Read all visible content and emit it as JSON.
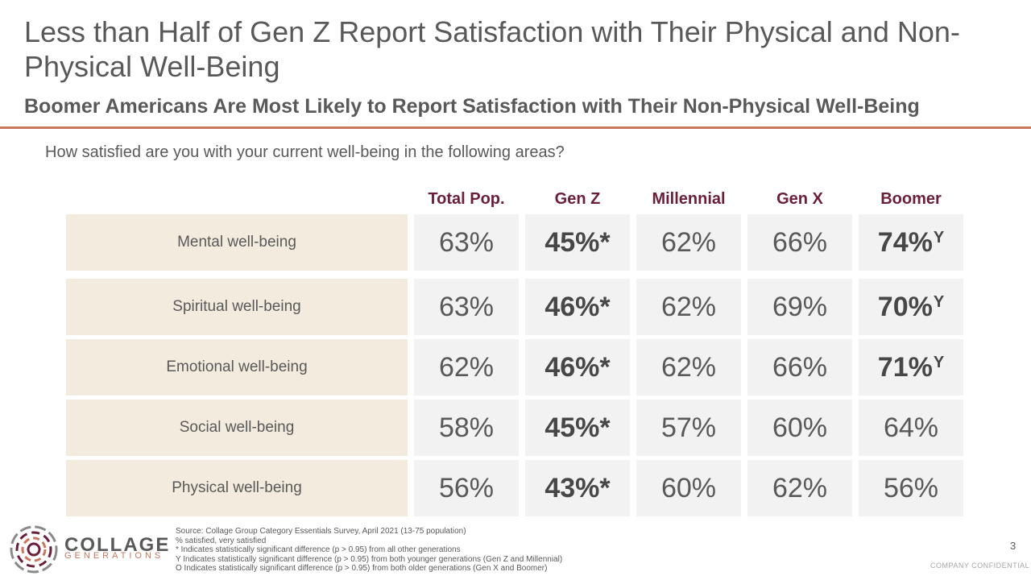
{
  "title": "Less than Half of Gen Z Report Satisfaction with Their Physical and Non-Physical Well-Being",
  "subtitle": "Boomer Americans Are Most Likely to Report Satisfaction with Their Non-Physical Well-Being",
  "question": "How satisfied are you with your current well-being in the following areas?",
  "columns": [
    "Total Pop.",
    "Gen Z",
    "Millennial",
    "Gen X",
    "Boomer"
  ],
  "rows": [
    {
      "label": "Mental well-being",
      "values": [
        "63%",
        "45%*",
        "62%",
        "66%",
        "74%"
      ],
      "boomer_sup": "Y"
    },
    {
      "label": "Spiritual well-being",
      "values": [
        "63%",
        "46%*",
        "62%",
        "69%",
        "70%"
      ],
      "boomer_sup": "Y"
    },
    {
      "label": "Emotional well-being",
      "values": [
        "62%",
        "46%*",
        "62%",
        "66%",
        "71%"
      ],
      "boomer_sup": "Y"
    },
    {
      "label": "Social well-being",
      "values": [
        "58%",
        "45%*",
        "57%",
        "60%",
        "64%"
      ],
      "boomer_sup": ""
    },
    {
      "label": "Physical well-being",
      "values": [
        "56%",
        "43%*",
        "60%",
        "62%",
        "56%"
      ],
      "boomer_sup": ""
    }
  ],
  "notes": [
    "Source: Collage Group Category Essentials Survey, April 2021 (13-75 population)",
    "% satisfied, very satisfied",
    "* Indicates statistically significant difference (p > 0.95) from all other generations",
    "Y Indicates statistically significant difference (p > 0.95) from both younger generations (Gen Z and Millennial)",
    "O Indicates statistically significant difference (p > 0.95) from both older generations (Gen X and Boomer)"
  ],
  "logo": {
    "line1": "COLLAGE",
    "line2": "GENERATIONS"
  },
  "page_number": "3",
  "confidential": "COMPANY CONFIDENTIAL",
  "colors": {
    "accent": "#c8775d",
    "header": "#6b1e3a",
    "label_bg": "#f3ebdd",
    "cell_bg": "#f2f2f2"
  }
}
